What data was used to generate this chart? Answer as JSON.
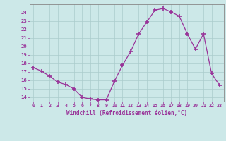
{
  "x": [
    0,
    1,
    2,
    3,
    4,
    5,
    6,
    7,
    8,
    9,
    10,
    11,
    12,
    13,
    14,
    15,
    16,
    17,
    18,
    19,
    20,
    21,
    22,
    23
  ],
  "y": [
    17.5,
    17.1,
    16.5,
    15.8,
    15.5,
    15.0,
    14.0,
    13.8,
    13.7,
    13.7,
    15.9,
    17.8,
    19.4,
    21.5,
    22.9,
    24.3,
    24.5,
    24.1,
    23.6,
    21.5,
    19.7,
    21.5,
    16.8,
    15.4
  ],
  "line_color": "#993399",
  "marker_color": "#993399",
  "bg_color": "#cce8e8",
  "grid_color": "#aacccc",
  "xlabel": "Windchill (Refroidissement éolien,°C)",
  "xlabel_color": "#993399",
  "tick_color": "#993399",
  "ylim": [
    13.5,
    25.0
  ],
  "xlim": [
    -0.5,
    23.5
  ],
  "yticks": [
    14,
    15,
    16,
    17,
    18,
    19,
    20,
    21,
    22,
    23,
    24
  ],
  "xticks": [
    0,
    1,
    2,
    3,
    4,
    5,
    6,
    7,
    8,
    9,
    10,
    11,
    12,
    13,
    14,
    15,
    16,
    17,
    18,
    19,
    20,
    21,
    22,
    23
  ],
  "xtick_labels": [
    "0",
    "1",
    "2",
    "3",
    "4",
    "5",
    "6",
    "7",
    "8",
    "9",
    "10",
    "11",
    "12",
    "13",
    "14",
    "15",
    "16",
    "17",
    "18",
    "19",
    "20",
    "21",
    "22",
    "23"
  ]
}
